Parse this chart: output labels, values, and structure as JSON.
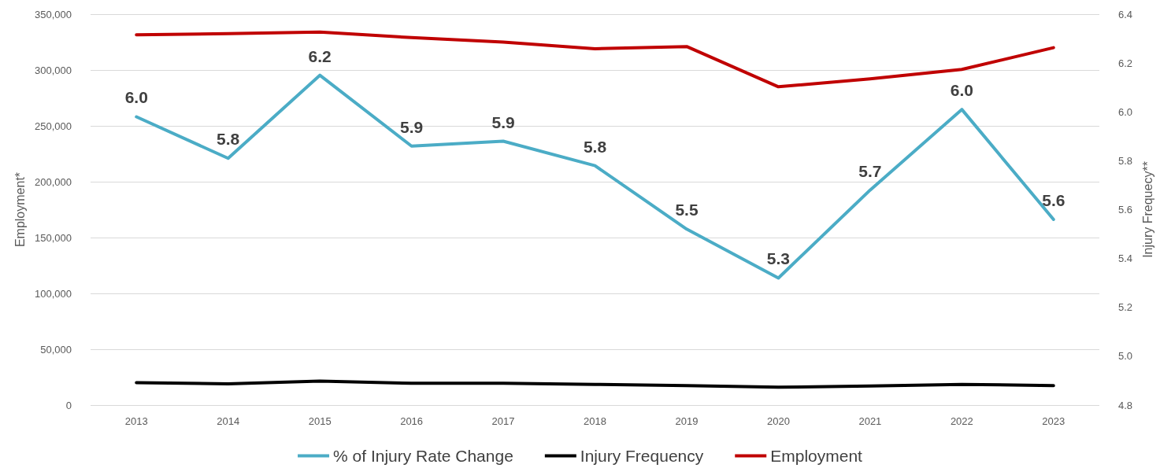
{
  "chart_data": {
    "type": "line",
    "ylabel": "Employment*",
    "y2label": "Injury Frequecy**",
    "categories": [
      "2013",
      "2014",
      "2015",
      "2016",
      "2017",
      "2018",
      "2019",
      "2020",
      "2021",
      "2022",
      "2023"
    ],
    "series": [
      {
        "name": "% of Injury Rate Change",
        "color": "#4bacc6",
        "axis": "y2",
        "values": [
          5.98,
          5.81,
          6.15,
          5.86,
          5.88,
          5.78,
          5.52,
          5.32,
          5.68,
          6.01,
          5.56
        ],
        "value_labels": [
          "6.0",
          "5.8",
          "6.2",
          "5.9",
          "5.9",
          "5.8",
          "5.5",
          "5.3",
          "5.7",
          "6.0",
          "5.6"
        ]
      },
      {
        "name": "Injury Frequency",
        "color": "#000000",
        "values": [
          20000,
          19000,
          21500,
          19500,
          19500,
          18500,
          17500,
          16000,
          17000,
          18500,
          17500
        ]
      },
      {
        "name": "Employment",
        "color": "#c00000",
        "values": [
          331500,
          332500,
          334000,
          329000,
          325000,
          319000,
          321000,
          285000,
          292000,
          300500,
          320000
        ]
      }
    ],
    "ylim": [
      0,
      350000
    ],
    "yticks": [
      {
        "value": 0,
        "label": "0"
      },
      {
        "value": 50000,
        "label": "50,000"
      },
      {
        "value": 100000,
        "label": "100,000"
      },
      {
        "value": 150000,
        "label": "150,000"
      },
      {
        "value": 200000,
        "label": "200,000"
      },
      {
        "value": 250000,
        "label": "250,000"
      },
      {
        "value": 300000,
        "label": "300,000"
      },
      {
        "value": 350000,
        "label": "350,000"
      }
    ],
    "y2lim": [
      4.8,
      6.4
    ],
    "y2ticks": [
      {
        "value": 4.8,
        "label": "4.8"
      },
      {
        "value": 5.0,
        "label": "5.0"
      },
      {
        "value": 5.2,
        "label": "5.2"
      },
      {
        "value": 5.4,
        "label": "5.4"
      },
      {
        "value": 5.6,
        "label": "5.6"
      },
      {
        "value": 5.8,
        "label": "5.8"
      },
      {
        "value": 6.0,
        "label": "6.0"
      },
      {
        "value": 6.2,
        "label": "6.2"
      },
      {
        "value": 6.4,
        "label": "6.4"
      }
    ],
    "grid": "y",
    "legend": "bottom",
    "marker": "none",
    "line_style": "solid"
  }
}
